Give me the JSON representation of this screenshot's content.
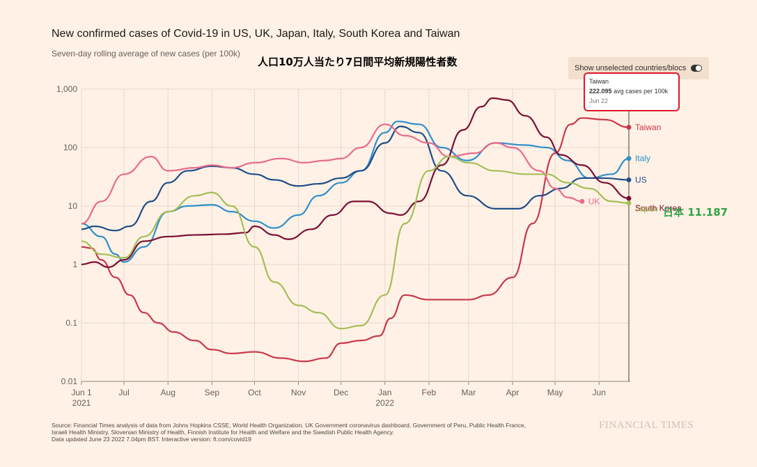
{
  "header": {
    "title": "New confirmed cases of Covid-19 in US, UK, Japan, Italy, South Korea and Taiwan",
    "subtitle": "Seven-day rolling average of new cases (per 100k)",
    "annotation_ja": "人口10万人当たり7日間平均新規陽性者数"
  },
  "toggle": {
    "label": "Show unselected countries/blocs"
  },
  "tooltip": {
    "country": "Taiwan",
    "value": "222.095",
    "unit": "avg cases per 100k",
    "date": "Jun 22"
  },
  "japan_callout": "日本 11.187",
  "source": {
    "line1": "Source: Financial Times analysis of data from Johns Hopkins CSSE, World Health Organization, UK Government coronavirus dashboard, Government of Peru, Public Health France,",
    "line2": "Israeli Health Ministry, Slovenian Ministry of Health, Finnish Institute for Health and Welfare and the Swedish Public Health Agency.",
    "line3": "Data updated June 23 2022 7.04pm BST. Interactive version: ft.com/covid19"
  },
  "logo": "FINANCIAL TIMES",
  "chart_data": {
    "type": "line",
    "yscale": "log",
    "ylim": [
      0.01,
      1000
    ],
    "xlim": [
      "2021-06-01",
      "2022-06-23"
    ],
    "y_ticks": [
      "1,000",
      "100",
      "10",
      "1",
      "0.1",
      "0.01"
    ],
    "y_tick_values": [
      1000,
      100,
      10,
      1,
      0.1,
      0.01
    ],
    "x_ticks": [
      {
        "label": "Jun 1",
        "sub": "2021",
        "date": "2021-06-01"
      },
      {
        "label": "Jul",
        "sub": "",
        "date": "2021-07-01"
      },
      {
        "label": "Aug",
        "sub": "",
        "date": "2021-08-01"
      },
      {
        "label": "Sep",
        "sub": "",
        "date": "2021-09-01"
      },
      {
        "label": "Oct",
        "sub": "",
        "date": "2021-10-01"
      },
      {
        "label": "Nov",
        "sub": "",
        "date": "2021-11-01"
      },
      {
        "label": "Dec",
        "sub": "",
        "date": "2021-12-01"
      },
      {
        "label": "Jan",
        "sub": "2022",
        "date": "2022-01-01"
      },
      {
        "label": "Feb",
        "sub": "",
        "date": "2022-02-01"
      },
      {
        "label": "Mar",
        "sub": "",
        "date": "2022-03-01"
      },
      {
        "label": "Apr",
        "sub": "",
        "date": "2022-04-01"
      },
      {
        "label": "May",
        "sub": "",
        "date": "2022-05-01"
      },
      {
        "label": "Jun",
        "sub": "",
        "date": "2022-06-01"
      }
    ],
    "grid": true,
    "hover_date": "2022-06-22",
    "series": [
      {
        "name": "Taiwan",
        "color": "#c8374a",
        "end_dot": true,
        "label_dy": 0,
        "points": [
          [
            "2021-06-01",
            2.0
          ],
          [
            "2021-06-08",
            1.9
          ],
          [
            "2021-06-15",
            1.2
          ],
          [
            "2021-06-25",
            0.6
          ],
          [
            "2021-07-05",
            0.3
          ],
          [
            "2021-07-15",
            0.15
          ],
          [
            "2021-07-25",
            0.1
          ],
          [
            "2021-08-05",
            0.07
          ],
          [
            "2021-08-20",
            0.05
          ],
          [
            "2021-09-01",
            0.035
          ],
          [
            "2021-09-15",
            0.03
          ],
          [
            "2021-10-01",
            0.032
          ],
          [
            "2021-10-20",
            0.025
          ],
          [
            "2021-11-05",
            0.022
          ],
          [
            "2021-11-20",
            0.025
          ],
          [
            "2021-12-01",
            0.045
          ],
          [
            "2021-12-15",
            0.05
          ],
          [
            "2021-12-28",
            0.06
          ],
          [
            "2022-01-05",
            0.12
          ],
          [
            "2022-01-15",
            0.3
          ],
          [
            "2022-02-01",
            0.25
          ],
          [
            "2022-03-01",
            0.25
          ],
          [
            "2022-03-15",
            0.3
          ],
          [
            "2022-04-01",
            0.6
          ],
          [
            "2022-04-15",
            5
          ],
          [
            "2022-05-01",
            80
          ],
          [
            "2022-05-12",
            250
          ],
          [
            "2022-05-20",
            320
          ],
          [
            "2022-06-05",
            300
          ],
          [
            "2022-06-22",
            222.1
          ]
        ]
      },
      {
        "name": "Italy",
        "color": "#2e8fca",
        "end_dot": true,
        "label_dy": 0,
        "points": [
          [
            "2021-06-01",
            5.0
          ],
          [
            "2021-06-15",
            3.0
          ],
          [
            "2021-06-25",
            1.5
          ],
          [
            "2021-07-01",
            1.1
          ],
          [
            "2021-07-15",
            2.0
          ],
          [
            "2021-08-01",
            8.0
          ],
          [
            "2021-08-15",
            10
          ],
          [
            "2021-09-01",
            10.5
          ],
          [
            "2021-09-15",
            8
          ],
          [
            "2021-10-01",
            5.5
          ],
          [
            "2021-10-15",
            4.2
          ],
          [
            "2021-11-01",
            7
          ],
          [
            "2021-11-15",
            15
          ],
          [
            "2021-12-01",
            25
          ],
          [
            "2021-12-15",
            40
          ],
          [
            "2022-01-01",
            180
          ],
          [
            "2022-01-10",
            280
          ],
          [
            "2022-01-25",
            250
          ],
          [
            "2022-02-10",
            100
          ],
          [
            "2022-02-28",
            60
          ],
          [
            "2022-03-20",
            120
          ],
          [
            "2022-04-10",
            110
          ],
          [
            "2022-04-25",
            100
          ],
          [
            "2022-05-10",
            60
          ],
          [
            "2022-05-25",
            30
          ],
          [
            "2022-06-10",
            35
          ],
          [
            "2022-06-22",
            65
          ]
        ]
      },
      {
        "name": "US",
        "color": "#1d4e89",
        "end_dot": true,
        "label_dy": 0,
        "points": [
          [
            "2021-06-01",
            4.0
          ],
          [
            "2021-06-10",
            4.5
          ],
          [
            "2021-06-25",
            3.8
          ],
          [
            "2021-07-05",
            4.5
          ],
          [
            "2021-07-20",
            12
          ],
          [
            "2021-08-01",
            25
          ],
          [
            "2021-08-15",
            40
          ],
          [
            "2021-09-01",
            48
          ],
          [
            "2021-09-15",
            45
          ],
          [
            "2021-10-01",
            35
          ],
          [
            "2021-10-15",
            28
          ],
          [
            "2021-11-01",
            22
          ],
          [
            "2021-11-15",
            24
          ],
          [
            "2021-12-01",
            30
          ],
          [
            "2021-12-15",
            40
          ],
          [
            "2022-01-01",
            120
          ],
          [
            "2022-01-12",
            230
          ],
          [
            "2022-01-25",
            180
          ],
          [
            "2022-02-10",
            40
          ],
          [
            "2022-02-28",
            15
          ],
          [
            "2022-03-20",
            9
          ],
          [
            "2022-04-05",
            9
          ],
          [
            "2022-04-20",
            15
          ],
          [
            "2022-05-05",
            20
          ],
          [
            "2022-05-20",
            30
          ],
          [
            "2022-06-05",
            30
          ],
          [
            "2022-06-22",
            28
          ]
        ]
      },
      {
        "name": "South Korea",
        "color": "#7a0e35",
        "end_dot": true,
        "label_dy": 14,
        "points": [
          [
            "2021-06-01",
            1.0
          ],
          [
            "2021-06-10",
            1.1
          ],
          [
            "2021-06-20",
            0.9
          ],
          [
            "2021-07-01",
            1.2
          ],
          [
            "2021-07-15",
            2.5
          ],
          [
            "2021-08-01",
            3.0
          ],
          [
            "2021-08-20",
            3.2
          ],
          [
            "2021-09-10",
            3.3
          ],
          [
            "2021-09-25",
            3.5
          ],
          [
            "2021-10-01",
            4.5
          ],
          [
            "2021-10-15",
            3.2
          ],
          [
            "2021-10-25",
            2.7
          ],
          [
            "2021-11-10",
            4.0
          ],
          [
            "2021-11-25",
            7
          ],
          [
            "2021-12-10",
            12
          ],
          [
            "2021-12-20",
            12
          ],
          [
            "2022-01-05",
            7.5
          ],
          [
            "2022-01-12",
            7
          ],
          [
            "2022-01-25",
            12
          ],
          [
            "2022-02-10",
            50
          ],
          [
            "2022-02-25",
            200
          ],
          [
            "2022-03-10",
            500
          ],
          [
            "2022-03-18",
            700
          ],
          [
            "2022-03-28",
            650
          ],
          [
            "2022-04-10",
            350
          ],
          [
            "2022-04-25",
            150
          ],
          [
            "2022-05-05",
            75
          ],
          [
            "2022-05-20",
            50
          ],
          [
            "2022-06-05",
            25
          ],
          [
            "2022-06-22",
            13.5
          ]
        ]
      },
      {
        "name": "UK",
        "color": "#e96a8d",
        "end_dot": true,
        "label_dy": 0,
        "points": [
          [
            "2021-06-01",
            5.0
          ],
          [
            "2021-06-15",
            12
          ],
          [
            "2021-07-01",
            35
          ],
          [
            "2021-07-20",
            70
          ],
          [
            "2021-08-01",
            40
          ],
          [
            "2021-08-20",
            45
          ],
          [
            "2021-09-01",
            50
          ],
          [
            "2021-09-15",
            45
          ],
          [
            "2021-10-01",
            55
          ],
          [
            "2021-10-20",
            65
          ],
          [
            "2021-11-05",
            55
          ],
          [
            "2021-11-20",
            60
          ],
          [
            "2021-12-01",
            65
          ],
          [
            "2021-12-15",
            100
          ],
          [
            "2022-01-01",
            250
          ],
          [
            "2022-01-15",
            160
          ],
          [
            "2022-02-01",
            120
          ],
          [
            "2022-02-15",
            70
          ],
          [
            "2022-03-05",
            80
          ],
          [
            "2022-03-20",
            120
          ],
          [
            "2022-04-01",
            100
          ],
          [
            "2022-04-20",
            40
          ],
          [
            "2022-05-01",
            20
          ],
          [
            "2022-05-10",
            14
          ],
          [
            "2022-05-20",
            12
          ]
        ]
      },
      {
        "name": "Japan",
        "color": "#a4be58",
        "end_dot": true,
        "label_dy": 8,
        "points": [
          [
            "2021-06-01",
            2.5
          ],
          [
            "2021-06-15",
            1.5
          ],
          [
            "2021-07-01",
            1.3
          ],
          [
            "2021-07-15",
            3
          ],
          [
            "2021-08-01",
            8
          ],
          [
            "2021-08-20",
            15
          ],
          [
            "2021-09-01",
            17
          ],
          [
            "2021-09-15",
            10
          ],
          [
            "2021-10-01",
            2
          ],
          [
            "2021-10-15",
            0.5
          ],
          [
            "2021-11-01",
            0.2
          ],
          [
            "2021-11-15",
            0.15
          ],
          [
            "2021-12-01",
            0.08
          ],
          [
            "2021-12-15",
            0.09
          ],
          [
            "2022-01-01",
            0.3
          ],
          [
            "2022-01-15",
            5
          ],
          [
            "2022-02-01",
            40
          ],
          [
            "2022-02-15",
            70
          ],
          [
            "2022-03-01",
            55
          ],
          [
            "2022-03-20",
            40
          ],
          [
            "2022-04-10",
            35
          ],
          [
            "2022-04-25",
            35
          ],
          [
            "2022-05-10",
            25
          ],
          [
            "2022-05-25",
            20
          ],
          [
            "2022-06-10",
            12
          ],
          [
            "2022-06-22",
            11.187
          ]
        ]
      }
    ]
  }
}
